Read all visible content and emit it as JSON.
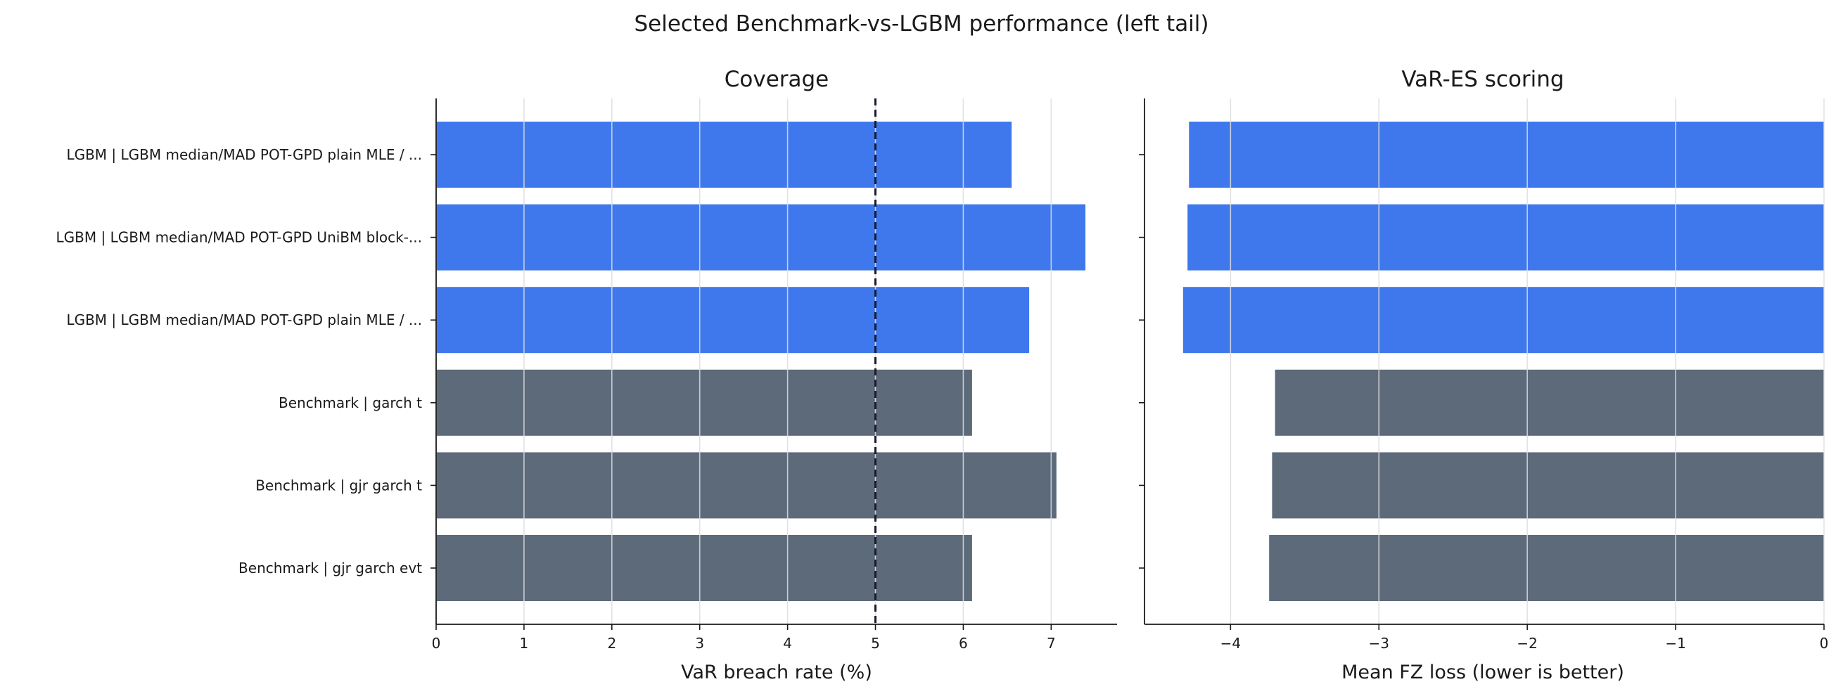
{
  "suptitle": "Selected Benchmark-vs-LGBM performance (left tail)",
  "colors": {
    "lgbm": "#3f78ec",
    "benchmark": "#5d6a7a",
    "reference_line": "#1a1a2e",
    "grid": "#dddddd"
  },
  "categories": [
    "LGBM | LGBM median/MAD POT-GPD plain MLE / ...",
    "LGBM | LGBM median/MAD POT-GPD UniBM block-...",
    "LGBM | LGBM median/MAD POT-GPD plain MLE / ...",
    "Benchmark | garch t",
    "Benchmark | gjr garch t",
    "Benchmark | gjr garch evt"
  ],
  "groups": [
    "lgbm",
    "lgbm",
    "lgbm",
    "benchmark",
    "benchmark",
    "benchmark"
  ],
  "chart_data": [
    {
      "type": "bar",
      "orientation": "horizontal",
      "title": "Coverage",
      "xlabel": "VaR breach rate (%)",
      "xlim": [
        0,
        7.75
      ],
      "xticks": [
        "0",
        "1",
        "2",
        "3",
        "4",
        "5",
        "6",
        "7"
      ],
      "xtick_values": [
        0,
        1,
        2,
        3,
        4,
        5,
        6,
        7
      ],
      "reference_line": 5,
      "grid": true,
      "values": [
        6.55,
        7.39,
        6.75,
        6.1,
        7.06,
        6.1
      ]
    },
    {
      "type": "bar",
      "orientation": "horizontal",
      "title": "VaR-ES scoring",
      "xlabel": "Mean FZ loss (lower is better)",
      "xlim": [
        -4.58,
        0
      ],
      "xticks": [
        "−4",
        "−3",
        "−2",
        "−1",
        "0"
      ],
      "xtick_values": [
        -4,
        -3,
        -2,
        -1,
        0
      ],
      "grid": true,
      "values": [
        -4.28,
        -4.29,
        -4.32,
        -3.7,
        -3.72,
        -3.74
      ]
    }
  ]
}
